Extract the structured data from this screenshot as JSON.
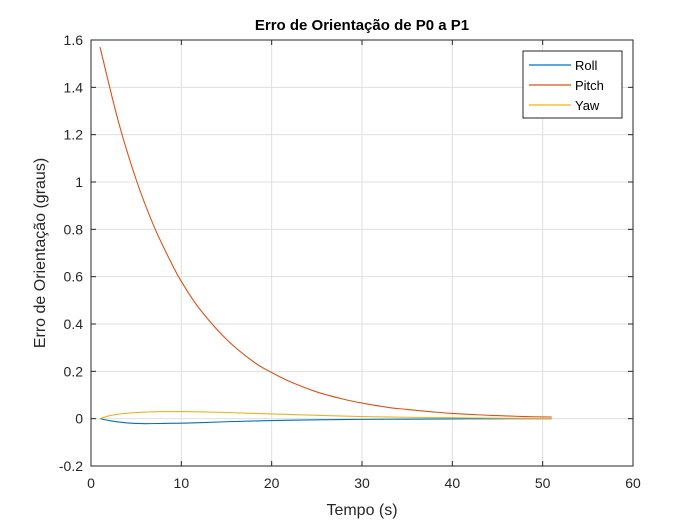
{
  "chart_data": {
    "type": "line",
    "title": "Erro de Orientação de P0 a P1",
    "xlabel": "Tempo (s)",
    "ylabel": "Erro de Orientação (graus)",
    "xlim": [
      0,
      60
    ],
    "ylim": [
      -0.2,
      1.6
    ],
    "xticks": [
      0,
      10,
      20,
      30,
      40,
      50,
      60
    ],
    "xtick_labels": [
      "0",
      "10",
      "20",
      "30",
      "40",
      "50",
      "60"
    ],
    "yticks": [
      -0.2,
      0,
      0.2,
      0.4,
      0.6,
      0.8,
      1,
      1.2,
      1.4,
      1.6
    ],
    "ytick_labels": [
      "-0.2",
      "0",
      "0.2",
      "0.4",
      "0.6",
      "0.8",
      "1",
      "1.2",
      "1.4",
      "1.6"
    ],
    "grid": true,
    "legend_position": "top-right",
    "series": [
      {
        "name": "Roll",
        "color": "#0072BD",
        "x": [
          1,
          2,
          3,
          4,
          5,
          6,
          8,
          10,
          12,
          15,
          20,
          25,
          30,
          35,
          40,
          45,
          51
        ],
        "y": [
          0,
          -0.008,
          -0.014,
          -0.018,
          -0.02,
          -0.021,
          -0.02,
          -0.019,
          -0.017,
          -0.013,
          -0.008,
          -0.005,
          -0.003,
          -0.002,
          -0.001,
          -0.0005,
          0
        ]
      },
      {
        "name": "Pitch",
        "color": "#D95319",
        "x": [
          1,
          3,
          5,
          7,
          9,
          10,
          12,
          15,
          18,
          20,
          22,
          25,
          28,
          30,
          33,
          35,
          38,
          40,
          43,
          45,
          48,
          51
        ],
        "y": [
          1.57,
          1.26,
          1.01,
          0.81,
          0.65,
          0.58,
          0.465,
          0.335,
          0.24,
          0.195,
          0.157,
          0.113,
          0.082,
          0.066,
          0.047,
          0.039,
          0.028,
          0.022,
          0.016,
          0.013,
          0.009,
          0.007
        ]
      },
      {
        "name": "Yaw",
        "color": "#EDB120",
        "x": [
          1,
          2,
          3,
          4,
          5,
          6,
          7,
          8,
          9,
          10,
          12,
          15,
          20,
          25,
          30,
          35,
          40,
          45,
          51
        ],
        "y": [
          0,
          0.012,
          0.019,
          0.023,
          0.026,
          0.028,
          0.029,
          0.03,
          0.03,
          0.03,
          0.029,
          0.026,
          0.02,
          0.014,
          0.009,
          0.006,
          0.004,
          0.002,
          0.001
        ]
      }
    ]
  }
}
